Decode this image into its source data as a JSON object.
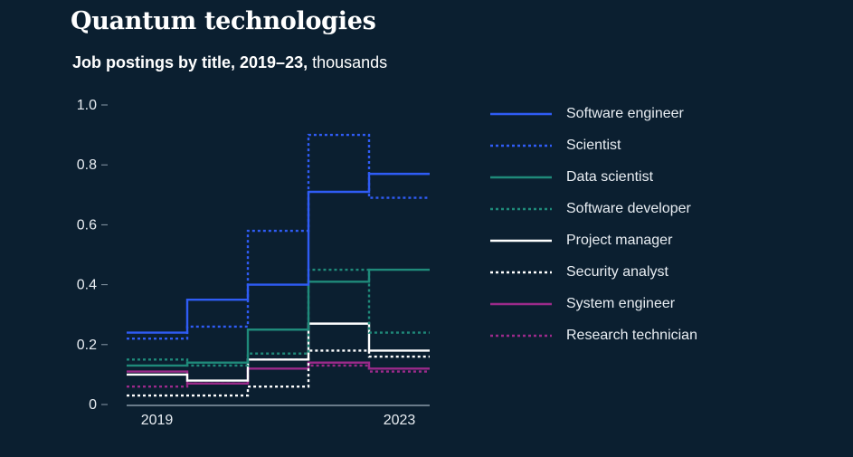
{
  "title": "Quantum technologies",
  "subtitle_bold": "Job postings by title, 2019–23,",
  "subtitle_unit": " thousands",
  "colors": {
    "background": "#0b1f30",
    "axis": "#8a9aa8",
    "blue": "#2f5cf5",
    "teal": "#1f8a7a",
    "white": "#ffffff",
    "magenta": "#9b2a8a"
  },
  "chart_data": {
    "type": "step-line",
    "title": "Job postings by title, 2019–23, thousands",
    "x": [
      2019,
      2020,
      2021,
      2022,
      2023
    ],
    "x_tick_labels": [
      "2019",
      "2023"
    ],
    "y_tick_labels": [
      "1.0",
      "0.8",
      "0.6",
      "0.4",
      "0.2",
      "0"
    ],
    "y_ticks": [
      1.0,
      0.8,
      0.6,
      0.4,
      0.2,
      0
    ],
    "ylim": [
      0,
      1.0
    ],
    "series": [
      {
        "name": "Software engineer",
        "color": "#2f5cf5",
        "dash": "solid",
        "values": [
          0.24,
          0.35,
          0.4,
          0.71,
          0.77
        ]
      },
      {
        "name": "Scientist",
        "color": "#2f5cf5",
        "dash": "dotted",
        "values": [
          0.22,
          0.26,
          0.58,
          0.9,
          0.69
        ]
      },
      {
        "name": "Data scientist",
        "color": "#1f8a7a",
        "dash": "solid",
        "values": [
          0.13,
          0.14,
          0.25,
          0.41,
          0.45
        ]
      },
      {
        "name": "Software developer",
        "color": "#1f8a7a",
        "dash": "dotted",
        "values": [
          0.15,
          0.13,
          0.17,
          0.45,
          0.24
        ]
      },
      {
        "name": "Project manager",
        "color": "#ffffff",
        "dash": "solid",
        "values": [
          0.1,
          0.08,
          0.15,
          0.27,
          0.18
        ]
      },
      {
        "name": "Security analyst",
        "color": "#ffffff",
        "dash": "dotted",
        "values": [
          0.03,
          0.03,
          0.06,
          0.18,
          0.16
        ]
      },
      {
        "name": "System engineer",
        "color": "#9b2a8a",
        "dash": "solid",
        "values": [
          0.11,
          0.07,
          0.12,
          0.14,
          0.12
        ]
      },
      {
        "name": "Research technician",
        "color": "#9b2a8a",
        "dash": "dotted",
        "values": [
          0.06,
          0.07,
          0.15,
          0.13,
          0.11
        ]
      }
    ]
  }
}
